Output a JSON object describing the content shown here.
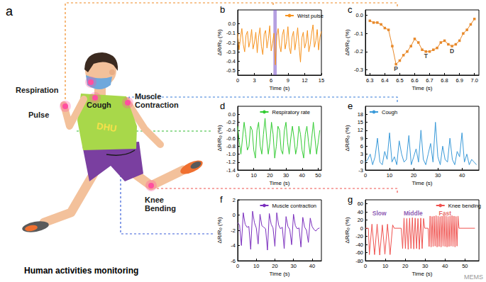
{
  "panel_a": {
    "label": "a",
    "caption": "Human activities monitoring",
    "shirt_text": "DHU",
    "sites": [
      {
        "name": [
          "Respiration"
        ]
      },
      {
        "name": [
          "Pulse"
        ]
      },
      {
        "name": [
          "Cough"
        ]
      },
      {
        "name": [
          "Muscle",
          "Contraction"
        ]
      },
      {
        "name": [
          "Knee",
          "Bending"
        ]
      }
    ]
  },
  "watermark": "MEMS",
  "chart_data": [
    {
      "type": "line",
      "title": "b",
      "xlabel": "Time (s)",
      "ylabel": "ΔR/R₀ (%)",
      "legend": "upper right",
      "grid": false,
      "x": [
        0,
        0.25,
        0.5,
        0.75,
        1,
        1.25,
        1.5,
        1.75,
        2,
        2.25,
        2.5,
        2.75,
        3,
        3.25,
        3.5,
        3.75,
        4,
        4.25,
        4.5,
        4.75,
        5,
        5.25,
        5.5,
        5.75,
        6,
        6.25,
        6.5,
        6.75,
        7,
        7.25,
        7.5,
        7.75,
        8,
        8.25,
        8.5,
        8.75,
        9,
        9.25,
        9.5,
        9.75,
        10,
        10.25,
        10.5,
        10.75,
        11,
        11.25,
        11.5,
        11.75,
        12,
        12.25,
        12.5,
        12.75,
        13,
        13.25,
        13.5,
        13.75,
        14,
        14.25,
        14.5,
        14.75,
        15
      ],
      "series": [
        {
          "name": "Wrist pulse",
          "color": "#f7931e",
          "values": [
            -0.1,
            -0.28,
            -0.15,
            -0.05,
            -0.22,
            -0.3,
            -0.12,
            -0.08,
            -0.25,
            -0.18,
            -0.06,
            -0.27,
            -0.2,
            -0.09,
            -0.31,
            -0.14,
            -0.04,
            -0.24,
            -0.33,
            -0.11,
            -0.07,
            -0.26,
            -0.16,
            -0.02,
            -0.29,
            -0.21,
            -0.1,
            -0.44,
            -0.13,
            -0.05,
            -0.23,
            -0.3,
            -0.12,
            -0.06,
            -0.27,
            -0.19,
            -0.03,
            -0.25,
            -0.32,
            -0.14,
            -0.08,
            -0.28,
            -0.17,
            -0.04,
            -0.24,
            -0.41,
            -0.15,
            -0.09,
            -0.26,
            -0.2,
            -0.07,
            -0.3,
            -0.22,
            -0.1,
            -0.01,
            -0.25,
            -0.18,
            -0.06,
            -0.28,
            -0.14,
            -0.08
          ]
        }
      ],
      "highlight_x": [
        6.4,
        7.0
      ],
      "xlim": [
        0,
        15
      ],
      "xticks": [
        0,
        3,
        6,
        9,
        12,
        15
      ],
      "ylim": [
        -0.55,
        0.15
      ],
      "yticks": [
        {
          "value": 0,
          "label": "0.0"
        },
        -0.1,
        -0.2,
        -0.3,
        -0.4,
        -0.5
      ]
    },
    {
      "type": "line",
      "title": "c",
      "xlabel": "Time (s)",
      "ylabel": "ΔR/R₀ (%)",
      "grid": false,
      "x": [
        6.3,
        6.325,
        6.35,
        6.375,
        6.4,
        6.425,
        6.45,
        6.475,
        6.5,
        6.525,
        6.55,
        6.575,
        6.6,
        6.625,
        6.65,
        6.675,
        6.7,
        6.725,
        6.75,
        6.775,
        6.8,
        6.825,
        6.85,
        6.875,
        6.9,
        6.925,
        6.95,
        6.975,
        7.0
      ],
      "series": [
        {
          "color": "#e8892a",
          "marker": "square",
          "values": [
            -0.03,
            -0.04,
            -0.04,
            -0.05,
            -0.07,
            -0.08,
            -0.17,
            -0.27,
            -0.25,
            -0.22,
            -0.2,
            -0.17,
            -0.13,
            -0.15,
            -0.19,
            -0.2,
            -0.2,
            -0.19,
            -0.18,
            -0.15,
            -0.14,
            -0.16,
            -0.17,
            -0.16,
            -0.14,
            -0.1,
            -0.08,
            -0.05,
            -0.02
          ]
        }
      ],
      "annotations": [
        {
          "text": "P",
          "x": 6.475,
          "y": -0.27
        },
        {
          "text": "T",
          "x": 6.675,
          "y": -0.2
        },
        {
          "text": "D",
          "x": 6.85,
          "y": -0.17
        }
      ],
      "xlim": [
        6.27,
        7.03
      ],
      "xticks": [
        6.3,
        6.4,
        6.5,
        6.6,
        6.7,
        6.8,
        6.9,
        {
          "value": 7,
          "label": "7.0"
        }
      ],
      "ylim": [
        -0.33,
        0.03
      ],
      "yticks": [
        {
          "value": 0,
          "label": "0.0"
        },
        -0.1,
        -0.2,
        -0.3
      ]
    },
    {
      "type": "line",
      "title": "d",
      "xlabel": "Time (s)",
      "ylabel": "ΔR/R₀ (%)",
      "legend": "upper center",
      "grid": false,
      "x": [
        0,
        1,
        2,
        3,
        4,
        5,
        6,
        7,
        8,
        9,
        10,
        11,
        12,
        13,
        14,
        15,
        16,
        17,
        18,
        19,
        20,
        21,
        22,
        23,
        24,
        25,
        26,
        27,
        28,
        29,
        30,
        31,
        32,
        33,
        34,
        35,
        36,
        37,
        38,
        39,
        40,
        41,
        42,
        43,
        44,
        45,
        46,
        47,
        48,
        49,
        50,
        51
      ],
      "series": [
        {
          "name": "Respiratory rate",
          "color": "#33cc33",
          "values": [
            -0.3,
            -0.7,
            -1.0,
            -0.6,
            -0.2,
            -0.5,
            -0.9,
            -0.8,
            -0.3,
            -0.4,
            -0.9,
            -1.1,
            -0.4,
            -0.2,
            -0.8,
            -1.0,
            -0.5,
            -0.1,
            -0.6,
            -1.0,
            -0.7,
            -0.2,
            -0.5,
            -1.1,
            -0.8,
            -0.3,
            -0.4,
            -0.9,
            -1.0,
            -0.4,
            -0.2,
            -0.7,
            -1.0,
            -0.6,
            -0.3,
            -0.6,
            -1.0,
            -0.8,
            -0.3,
            -0.5,
            -0.9,
            -1.1,
            -0.5,
            -0.3,
            -0.7,
            -1.0,
            -0.6,
            -0.2,
            -0.6,
            -1.0,
            -0.7,
            -0.4
          ]
        }
      ],
      "xlim": [
        0,
        52
      ],
      "xticks": [
        0,
        10,
        20,
        30,
        40,
        50
      ],
      "ylim": [
        -1.4,
        0.2
      ],
      "yticks": [
        {
          "value": 0,
          "label": "0.0"
        },
        -0.2,
        -0.4,
        -0.6,
        -0.8,
        {
          "value": -1,
          "label": "-1.0"
        },
        -1.2,
        -1.4
      ]
    },
    {
      "type": "line",
      "title": "e",
      "xlabel": "Time (s)",
      "ylabel": "ΔR/R₀ (%)",
      "legend": "upper left",
      "grid": false,
      "x": [
        0,
        1,
        2,
        3,
        4,
        5,
        6,
        7,
        8,
        9,
        10,
        11,
        12,
        13,
        14,
        15,
        16,
        17,
        18,
        19,
        20,
        21,
        22,
        23,
        24,
        25,
        26,
        27,
        28,
        29,
        30,
        31,
        32,
        33,
        34,
        35,
        36,
        37,
        38,
        39,
        40,
        41,
        42,
        43,
        44,
        45,
        46
      ],
      "series": [
        {
          "name": "Cough",
          "color": "#3a9ad9",
          "values": [
            0,
            1,
            3,
            -1,
            2,
            9,
            0,
            -1,
            4,
            1,
            11,
            0,
            2,
            -1,
            8,
            3,
            0,
            1,
            10,
            -1,
            2,
            5,
            0,
            12,
            1,
            -1,
            3,
            7,
            0,
            15,
            2,
            -1,
            6,
            1,
            0,
            9,
            1,
            -1,
            4,
            2,
            11,
            0,
            3,
            -1,
            1,
            0,
            -1
          ]
        }
      ],
      "xlim": [
        0,
        47
      ],
      "xticks": [
        0,
        10,
        20,
        30,
        40
      ],
      "ylim": [
        -3,
        21
      ],
      "yticks": [
        -3,
        0,
        3,
        6,
        9,
        12,
        15,
        18
      ]
    },
    {
      "type": "line",
      "title": "f",
      "xlabel": "Time (s)",
      "ylabel": "ΔR/R₀ (%)",
      "legend": "upper center",
      "grid": false,
      "x": [
        0,
        1,
        2,
        3,
        4,
        5,
        6,
        7,
        8,
        9,
        10,
        11,
        12,
        13,
        14,
        15,
        16,
        17,
        18,
        19,
        20,
        21,
        22,
        23,
        24,
        25,
        26,
        27,
        28,
        29,
        30,
        31,
        32,
        33,
        34,
        35,
        36,
        37,
        38,
        39,
        40,
        41,
        42,
        43,
        44
      ],
      "series": [
        {
          "name": "Muscle contraction",
          "color": "#7b2fbe",
          "values": [
            -1.0,
            -1.3,
            -4.0,
            0.3,
            -1.2,
            -1.6,
            -1.5,
            -4.5,
            0.5,
            -1.0,
            -1.7,
            -3.8,
            0.1,
            -1.4,
            -1.6,
            -1.8,
            -4.6,
            0.2,
            -1.2,
            -1.7,
            -4.1,
            0.3,
            -1.3,
            -1.8,
            -1.6,
            -4.4,
            -0.2,
            -1.5,
            -1.9,
            -3.9,
            0.1,
            -1.4,
            -1.8,
            -1.7,
            -4.2,
            -0.3,
            -1.6,
            -2.0,
            -3.6,
            -0.4,
            -1.5,
            -1.9,
            -2.1,
            -1.8,
            -1.7
          ]
        }
      ],
      "xlim": [
        0,
        45
      ],
      "xticks": [
        0,
        10,
        20,
        30,
        40
      ],
      "ylim": [
        -6,
        2
      ],
      "yticks": [
        -6,
        -4,
        -2,
        0,
        2
      ]
    },
    {
      "type": "line",
      "title": "g",
      "xlabel": "Time (s)",
      "ylabel": "ΔR/R₀ (%)",
      "legend": "upper right",
      "grid": false,
      "x": [
        0,
        1.5,
        2.0,
        3.3,
        4.6,
        5.9,
        7.2,
        8.5,
        9.8,
        11.1,
        12.4,
        13.7,
        14.5,
        18,
        18.7,
        19.4,
        20.1,
        20.8,
        21.5,
        22.2,
        22.9,
        23.6,
        24.3,
        25.0,
        25.7,
        26.4,
        27.1,
        27.8,
        28.5,
        29.2,
        29.8,
        31.5,
        32.0,
        32.5,
        33.0,
        33.5,
        34.0,
        34.5,
        35.0,
        35.5,
        36.0,
        36.5,
        37.0,
        37.5,
        38.0,
        38.5,
        39.0,
        39.5,
        40.0,
        40.5,
        41.0,
        41.5,
        42.0,
        42.5,
        43.0,
        43.5,
        44.0,
        44.5,
        45.0,
        45.5,
        46.0,
        46.5,
        47.0,
        55
      ],
      "series": [
        {
          "name": "Knee bending",
          "color": "#f0524f",
          "values": [
            0,
            0,
            -65,
            10,
            -65,
            10,
            -66,
            8,
            -64,
            10,
            -65,
            8,
            0,
            0,
            -50,
            25,
            -50,
            24,
            -52,
            25,
            -50,
            26,
            -51,
            25,
            -50,
            24,
            -52,
            25,
            -50,
            24,
            0,
            0,
            -45,
            30,
            -46,
            29,
            -45,
            30,
            -44,
            31,
            -46,
            30,
            -45,
            29,
            -46,
            30,
            -44,
            31,
            -45,
            30,
            -46,
            29,
            -45,
            30,
            -44,
            31,
            -45,
            30,
            -46,
            29,
            -44,
            30,
            0,
            0
          ]
        }
      ],
      "annotations": [
        {
          "text": "Slow",
          "x": 7,
          "y": 48,
          "color": "#7030a0"
        },
        {
          "text": "Middle",
          "x": 24,
          "y": 48,
          "color": "#7030a0"
        },
        {
          "text": "Fast",
          "x": 40,
          "y": 48,
          "color": "#e03c3c"
        }
      ],
      "xlim": [
        0,
        57
      ],
      "xticks": [
        0,
        10,
        20,
        30,
        40,
        50
      ],
      "ylim": [
        -80,
        70
      ],
      "yticks": [
        -80,
        -60,
        -40,
        -20,
        0,
        20,
        40,
        60
      ]
    }
  ]
}
